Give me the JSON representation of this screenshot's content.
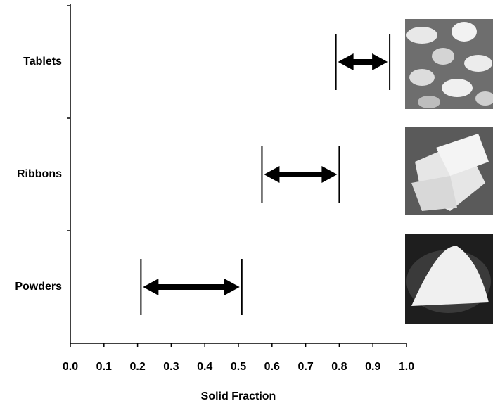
{
  "chart_data": {
    "type": "range",
    "x_label": "Solid Fraction",
    "categories": [
      "Tablets",
      "Ribbons",
      "Powders"
    ],
    "values": [
      [
        0.79,
        0.95
      ],
      [
        0.57,
        0.8
      ],
      [
        0.21,
        0.51
      ]
    ],
    "color": "#000000",
    "xlim": [
      0,
      1
    ],
    "xticks": [
      {
        "value": 0,
        "label": "0.0"
      },
      0.1,
      0.2,
      0.3,
      0.4,
      0.5,
      0.6,
      0.7,
      0.8,
      0.9,
      {
        "value": 1,
        "label": "1.0"
      }
    ]
  }
}
